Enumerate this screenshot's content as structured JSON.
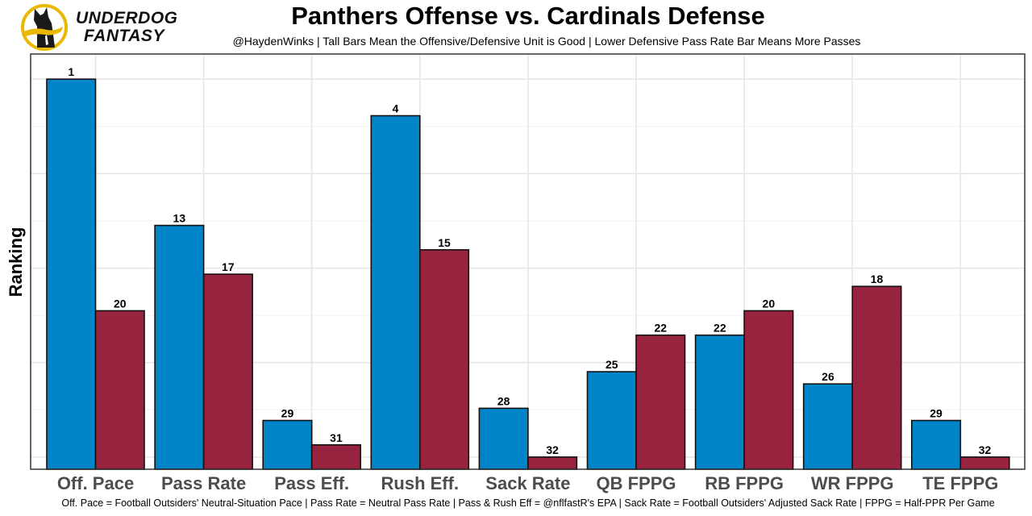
{
  "brand": {
    "line1": "UNDERDOG",
    "line2": "FANTASY",
    "logo_icon": "underdog-dog-logo-icon"
  },
  "colors": {
    "offense": "#0284C8",
    "defense": "#97233F",
    "logo_ring": "#E9B800"
  },
  "chart_data": {
    "type": "bar",
    "title": "Panthers Offense vs. Cardinals Defense",
    "subtitle": "@HaydenWinks | Tall Bars Mean the Offensive/Defensive Unit is Good | Lower Defensive Pass Rate Bar Means More Passes",
    "caption": "Off. Pace = Football Outsiders' Neutral-Situation Pace | Pass Rate = Neutral Pass Rate | Pass & Rush Eff = @nflfastR's EPA | Sack Rate = Football Outsiders' Adjusted Sack Rate | FPPG = Half-PPR Per Game",
    "xlabel": "",
    "ylabel": "Ranking",
    "y_reversed": true,
    "ylim": [
      32,
      1
    ],
    "grid": true,
    "legend": "none",
    "categories": [
      "Off. Pace",
      "Pass Rate",
      "Pass Eff.",
      "Rush Eff.",
      "Sack Rate",
      "QB FPPG",
      "RB FPPG",
      "WR FPPG",
      "TE FPPG"
    ],
    "series": [
      {
        "name": "Panthers Offense",
        "values": [
          1,
          13,
          29,
          4,
          28,
          25,
          22,
          26,
          29
        ]
      },
      {
        "name": "Cardinals Defense",
        "values": [
          20,
          17,
          31,
          15,
          32,
          22,
          20,
          18,
          32
        ]
      }
    ]
  }
}
